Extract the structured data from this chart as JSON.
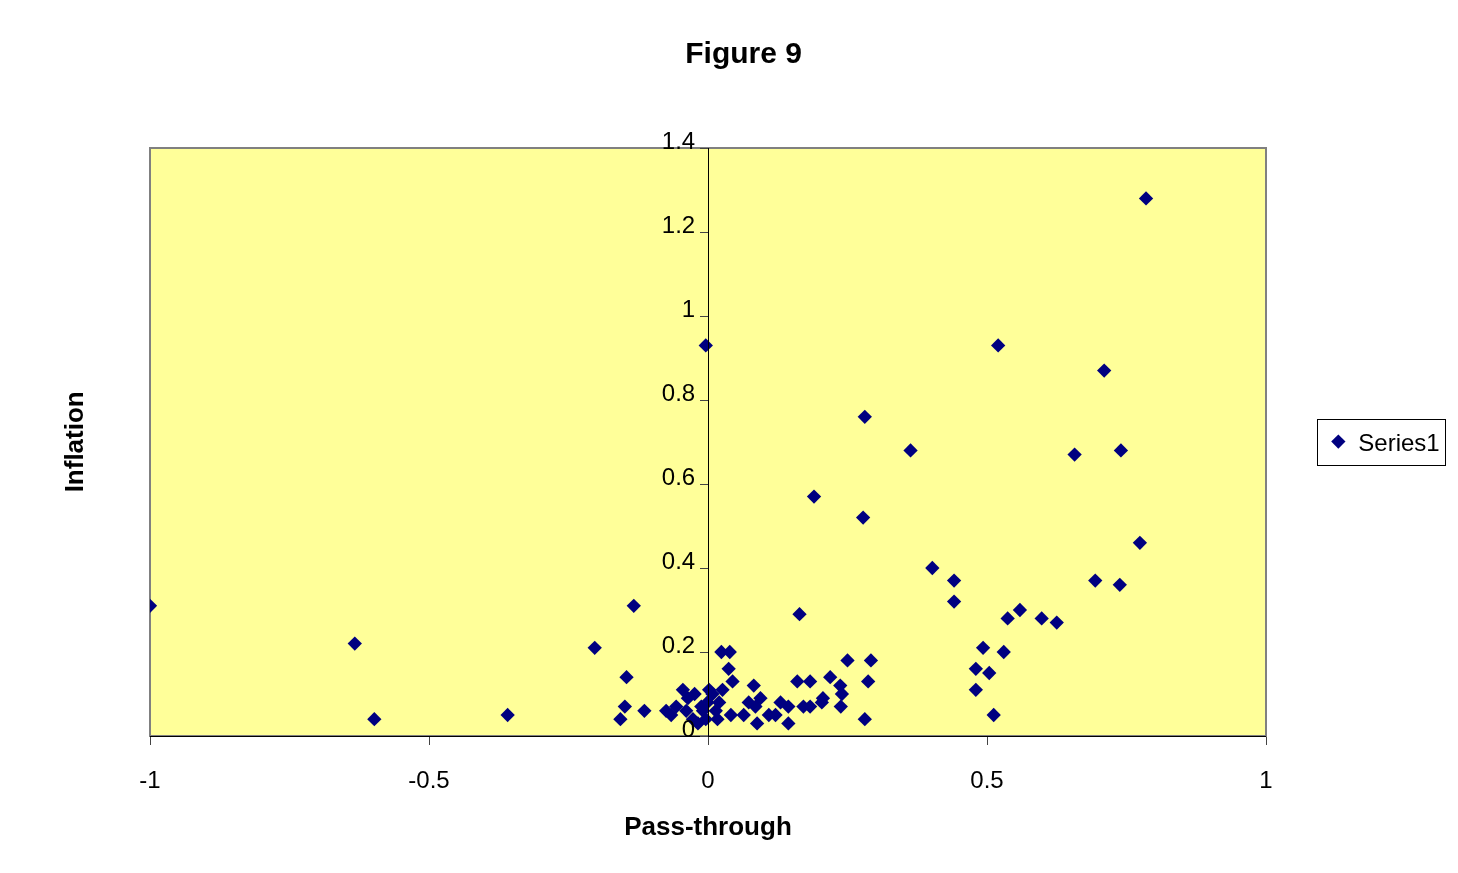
{
  "chart_data": {
    "type": "scatter",
    "title": "Figure 9",
    "xlabel": "Pass-through",
    "ylabel": "Inflation",
    "legend": "right",
    "marker": "diamond",
    "grid": false,
    "xlim": [
      -1,
      1
    ],
    "xticks": [
      -1,
      -0.5,
      0,
      0.5,
      1
    ],
    "ylim": [
      0,
      1.4
    ],
    "yticks": [
      0,
      0.2,
      0.4,
      0.6,
      0.8,
      1,
      1.2,
      1.4
    ],
    "series": [
      {
        "name": "Series1",
        "color": "#000080",
        "x": [
          -1.0,
          -0.633,
          -0.598,
          -0.359,
          -0.133,
          -0.203,
          -0.146,
          -0.149,
          -0.157,
          -0.114,
          -0.004,
          0.164,
          0.19,
          0.281,
          0.278,
          0.363,
          0.402,
          0.441,
          0.441,
          0.52,
          0.71,
          0.657,
          0.74,
          0.774,
          0.785,
          0.694,
          0.738,
          0.537,
          0.559,
          0.598,
          0.625,
          0.53,
          0.493,
          0.48,
          0.504,
          0.48,
          0.512,
          0.024,
          0.039,
          0.037,
          0.25,
          0.292,
          0.16,
          0.183,
          0.219,
          0.287,
          0.237,
          0.24,
          0.238,
          0.281,
          0.204,
          0.206,
          0.183,
          0.171,
          0.144,
          0.144,
          0.13,
          0.121,
          0.109,
          0.088,
          0.094,
          0.082,
          0.085,
          0.073,
          0.064,
          0.041,
          0.044,
          0.026,
          0.02,
          0.017,
          0.002,
          -0.001,
          -0.009,
          -0.004,
          -0.018,
          -0.027,
          -0.024,
          -0.045,
          -0.036,
          -0.057,
          -0.075,
          -0.066,
          -0.039,
          -0.012,
          0.008,
          0.014
        ],
        "values": [
          0.31,
          0.22,
          0.04,
          0.05,
          0.31,
          0.21,
          0.14,
          0.07,
          0.04,
          0.06,
          0.93,
          0.29,
          0.57,
          0.76,
          0.52,
          0.68,
          0.4,
          0.37,
          0.32,
          0.93,
          0.87,
          0.67,
          0.68,
          0.46,
          1.28,
          0.37,
          0.36,
          0.28,
          0.3,
          0.28,
          0.27,
          0.2,
          0.21,
          0.16,
          0.15,
          0.11,
          0.05,
          0.2,
          0.2,
          0.16,
          0.18,
          0.18,
          0.13,
          0.13,
          0.14,
          0.13,
          0.12,
          0.1,
          0.07,
          0.04,
          0.08,
          0.09,
          0.07,
          0.07,
          0.07,
          0.03,
          0.08,
          0.05,
          0.05,
          0.03,
          0.09,
          0.12,
          0.07,
          0.08,
          0.05,
          0.05,
          0.13,
          0.11,
          0.08,
          0.04,
          0.11,
          0.08,
          0.06,
          0.04,
          0.03,
          0.04,
          0.1,
          0.11,
          0.09,
          0.07,
          0.06,
          0.05,
          0.06,
          0.07,
          0.1,
          0.06
        ]
      }
    ]
  }
}
